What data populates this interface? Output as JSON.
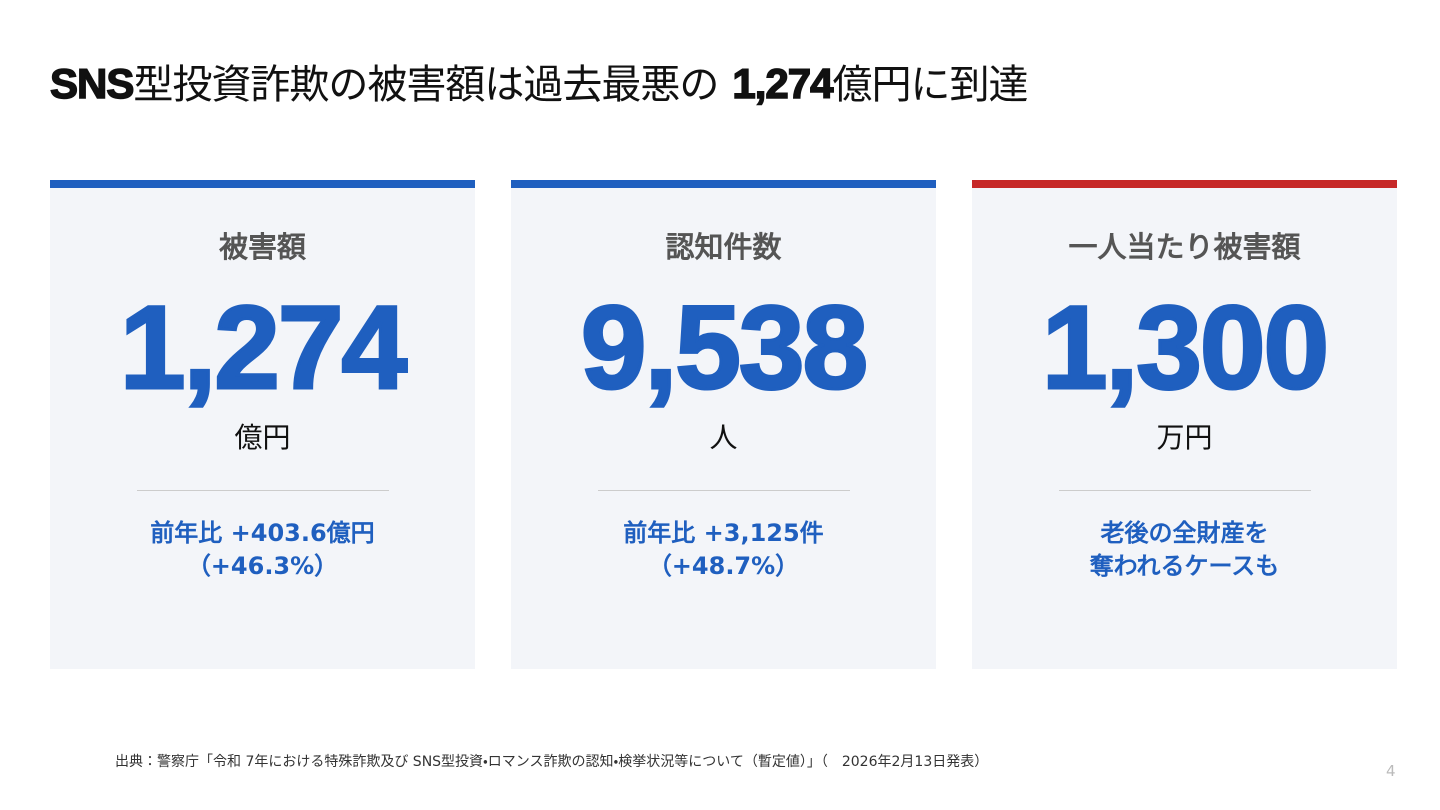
{
  "header": {
    "title": [
      "SNS",
      "型投資詐欺の被害額は過去最悪の",
      "1,274",
      "億円に到達"
    ]
  },
  "cards": [
    {
      "label": "被害額",
      "value": "1,274",
      "unit": "億円",
      "note": [
        "前年比 +403.6億円",
        "（+46.3%）"
      ],
      "accent": "#1f5fbf"
    },
    {
      "label": "認知件数",
      "value": "9,538",
      "unit": "人",
      "note": [
        "前年比 +3,125件",
        "（+48.7%）"
      ],
      "accent": "#1f5fbf"
    },
    {
      "label": "一人当たり被害額",
      "value": "1,300",
      "unit": "万円",
      "note": [
        "老後の全財産を",
        "奪われるケースも"
      ],
      "accent": "#c62828"
    }
  ],
  "footer": {
    "source": "出典：警察庁「令和 7年における特殊詐欺及び SNS型投資・ロマンス詐欺の認知・検挙状況等について（暫定値）」（　2026年2月13日発表）",
    "page": "4"
  }
}
